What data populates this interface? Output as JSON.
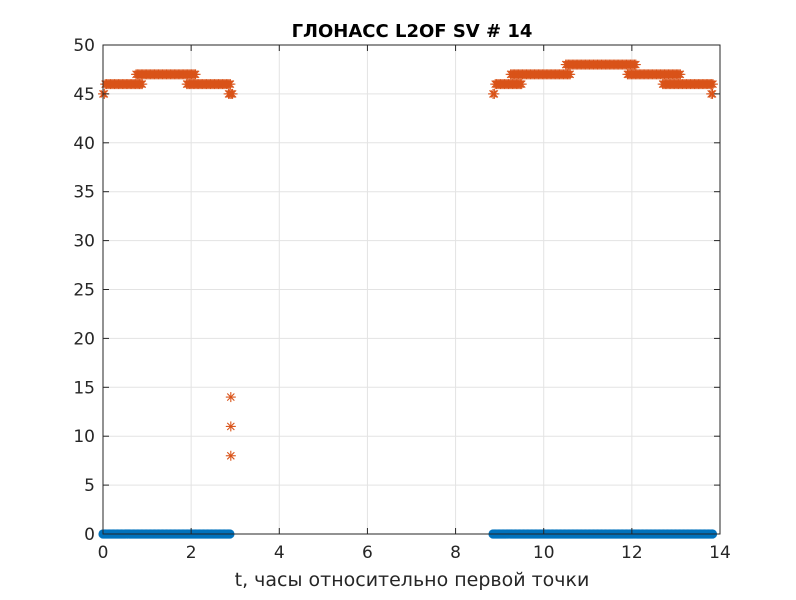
{
  "chart_data": {
    "type": "scatter",
    "title": "ГЛОНАСС L2OF SV # 14",
    "xlabel": "t, часы относительно первой точки",
    "ylabel": "",
    "xlim": [
      0,
      14
    ],
    "ylim": [
      0,
      50
    ],
    "xticks": [
      0,
      2,
      4,
      6,
      8,
      10,
      12,
      14
    ],
    "yticks": [
      0,
      5,
      10,
      15,
      20,
      25,
      30,
      35,
      40,
      45,
      50
    ],
    "grid": true,
    "legend": false,
    "colors": {
      "series1": "#0072BD",
      "series2": "#D95319",
      "axes": "#262626",
      "grid": "#e3e3e3"
    },
    "series": [
      {
        "marker": "dot",
        "segments": [
          {
            "x_start": 0.0,
            "x_end": 2.9,
            "y": 0
          },
          {
            "x_start": 8.85,
            "x_end": 13.85,
            "y": 0
          }
        ]
      },
      {
        "marker": "asterisk",
        "segments": [
          {
            "x_start": 0.0,
            "x_end": 0.05,
            "y": 45
          },
          {
            "x_start": 0.05,
            "x_end": 0.9,
            "y": 46
          },
          {
            "x_start": 0.75,
            "x_end": 2.1,
            "y": 47
          },
          {
            "x_start": 1.9,
            "x_end": 2.9,
            "y": 46
          },
          {
            "x_start": 2.85,
            "x_end": 2.95,
            "y": 45
          },
          {
            "x_start": 8.85,
            "x_end": 8.9,
            "y": 45
          },
          {
            "x_start": 8.9,
            "x_end": 9.5,
            "y": 46
          },
          {
            "x_start": 9.25,
            "x_end": 10.6,
            "y": 47
          },
          {
            "x_start": 10.5,
            "x_end": 12.1,
            "y": 48
          },
          {
            "x_start": 11.9,
            "x_end": 13.1,
            "y": 47
          },
          {
            "x_start": 12.7,
            "x_end": 13.85,
            "y": 46
          },
          {
            "x_start": 13.8,
            "x_end": 13.85,
            "y": 45
          }
        ],
        "points": [
          {
            "x": 2.9,
            "y": 14
          },
          {
            "x": 2.9,
            "y": 11
          },
          {
            "x": 2.9,
            "y": 8
          }
        ]
      }
    ]
  }
}
